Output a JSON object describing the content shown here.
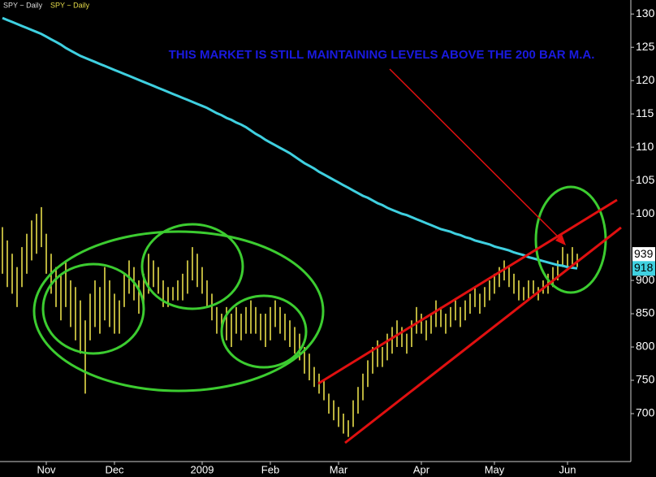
{
  "chart_data": {
    "type": "ohlc",
    "toolbar": [
      "SPY ~ Daily",
      "SPY ~ Daily"
    ],
    "annotation": "THIS MARKET IS STILL MAINTAINING LEVELS ABOVE THE 200 BAR M.A.",
    "categories": [
      null,
      null,
      null,
      null,
      null,
      null,
      null,
      null,
      null,
      "Nov",
      null,
      null,
      null,
      null,
      null,
      null,
      null,
      null,
      null,
      null,
      null,
      null,
      null,
      "Dec",
      null,
      null,
      null,
      null,
      null,
      null,
      null,
      null,
      null,
      null,
      null,
      null,
      null,
      null,
      null,
      null,
      null,
      "2009",
      null,
      null,
      null,
      null,
      null,
      null,
      null,
      null,
      null,
      null,
      null,
      null,
      null,
      "Feb",
      null,
      null,
      null,
      null,
      null,
      null,
      null,
      null,
      null,
      null,
      null,
      null,
      null,
      "Mar",
      null,
      null,
      null,
      null,
      null,
      null,
      null,
      null,
      null,
      null,
      null,
      null,
      null,
      null,
      null,
      null,
      "Apr",
      null,
      null,
      null,
      null,
      null,
      null,
      null,
      null,
      null,
      null,
      null,
      null,
      null,
      null,
      "May",
      null,
      null,
      null,
      null,
      null,
      null,
      null,
      null,
      null,
      null,
      null,
      null,
      null,
      null,
      "Jun",
      null,
      null
    ],
    "high": [
      98,
      96,
      94,
      92,
      95,
      97,
      99,
      100,
      101,
      97,
      94,
      92,
      91,
      93,
      90,
      89,
      87,
      84,
      88,
      90,
      89,
      92,
      90,
      88,
      87,
      91,
      93,
      92,
      90,
      91,
      94,
      93,
      92,
      90,
      89,
      89,
      90,
      91,
      93,
      95,
      94,
      92,
      90,
      88,
      86,
      85,
      86,
      85,
      86,
      85,
      86,
      87,
      86,
      85,
      85,
      86,
      87,
      86,
      85,
      84,
      83,
      82,
      80,
      79,
      77,
      76,
      75,
      73,
      72,
      71,
      70,
      69,
      72,
      74,
      76,
      78,
      80,
      81,
      80,
      82,
      83,
      84,
      83,
      82,
      84,
      86,
      85,
      84,
      85,
      87,
      86,
      85,
      86,
      87,
      86,
      87,
      88,
      89,
      88,
      89,
      90,
      91,
      92,
      93,
      92,
      91,
      90,
      89,
      90,
      90,
      89,
      90,
      91,
      92,
      93,
      95,
      94,
      95,
      94
    ],
    "low": [
      91,
      89,
      88,
      86,
      89,
      91,
      93,
      94,
      95,
      91,
      88,
      86,
      84,
      86,
      83,
      81,
      79,
      73,
      81,
      83,
      82,
      84,
      83,
      82,
      82,
      86,
      88,
      87,
      85,
      86,
      88,
      89,
      88,
      86,
      86,
      87,
      87,
      87,
      88,
      90,
      89,
      88,
      86,
      84,
      82,
      82,
      81,
      80,
      82,
      81,
      82,
      82,
      82,
      81,
      80,
      81,
      83,
      82,
      81,
      80,
      79,
      78,
      76,
      75,
      74,
      73,
      72,
      70,
      69,
      68,
      67,
      66.5,
      68,
      70,
      72,
      74,
      76,
      77,
      77,
      78,
      79,
      80,
      80,
      79,
      80,
      82,
      82,
      81,
      82,
      83,
      83,
      82,
      83,
      84,
      83,
      84,
      85,
      86,
      85,
      86,
      87,
      88,
      89,
      90,
      89,
      88,
      87,
      87,
      87,
      88,
      87,
      88,
      88,
      89,
      90,
      92,
      92,
      92,
      92
    ],
    "color": "#e6dc4a",
    "ma": {
      "color": "#3fd0e0",
      "values": [
        129.4,
        129.1,
        128.8,
        128.5,
        128.2,
        127.9,
        127.6,
        127.3,
        127.0,
        126.6,
        126.2,
        125.8,
        125.4,
        124.9,
        124.5,
        124.1,
        123.7,
        123.4,
        123.1,
        122.8,
        122.5,
        122.2,
        121.9,
        121.6,
        121.3,
        121.0,
        120.7,
        120.4,
        120.1,
        119.8,
        119.5,
        119.2,
        118.9,
        118.6,
        118.3,
        118.0,
        117.7,
        117.4,
        117.1,
        116.8,
        116.5,
        116.2,
        115.9,
        115.5,
        115.1,
        114.8,
        114.4,
        114.1,
        113.7,
        113.4,
        113.0,
        112.5,
        112.0,
        111.6,
        111.1,
        110.7,
        110.3,
        109.9,
        109.5,
        109.1,
        108.6,
        108.1,
        107.6,
        107.2,
        106.8,
        106.3,
        105.9,
        105.5,
        105.1,
        104.7,
        104.3,
        103.9,
        103.5,
        103.1,
        102.7,
        102.4,
        102.0,
        101.6,
        101.3,
        100.9,
        100.6,
        100.3,
        100.0,
        99.8,
        99.5,
        99.2,
        98.9,
        98.6,
        98.3,
        98.0,
        97.7,
        97.5,
        97.3,
        97.0,
        96.8,
        96.5,
        96.3,
        96.0,
        95.8,
        95.6,
        95.4,
        95.1,
        94.9,
        94.7,
        94.5,
        94.2,
        94.0,
        93.8,
        93.5,
        93.3,
        93.1,
        92.9,
        92.7,
        92.5,
        92.3,
        92.2,
        92.0,
        91.9,
        91.8
      ]
    },
    "markers": [
      {
        "value": 93.9,
        "label": "939",
        "color": "#ffffff"
      },
      {
        "value": 91.8,
        "label": "918",
        "color": "#3fd0e0"
      }
    ],
    "ylim": [
      62.8,
      132.1
    ],
    "yticks": [
      130,
      125,
      120,
      115,
      110,
      105,
      100,
      {
        "value": 90,
        "label": "900"
      },
      {
        "value": 85,
        "label": "850"
      },
      {
        "value": 80,
        "label": "800"
      },
      {
        "value": 75,
        "label": "750"
      },
      {
        "value": 70,
        "label": "700"
      }
    ]
  }
}
